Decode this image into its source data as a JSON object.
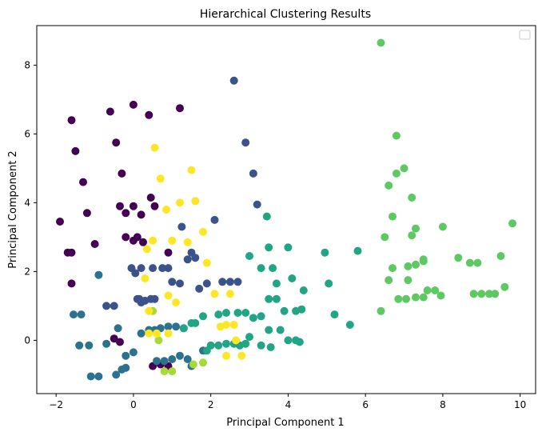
{
  "chart_data": {
    "type": "scatter",
    "title": "Hierarchical Clustering Results",
    "xlabel": "Principal Component 1",
    "ylabel": "Principal Component 2",
    "xlim": [
      -2.5,
      10.4
    ],
    "ylim": [
      -1.55,
      9.15
    ],
    "xticks": [
      -2,
      0,
      2,
      4,
      6,
      8,
      10
    ],
    "yticks": [
      0,
      2,
      4,
      6,
      8
    ],
    "grid": false,
    "legend": "top-right (empty)",
    "colors": {
      "purple": "#440154",
      "darkblue": "#3b528b",
      "teal": "#2c728e",
      "green": "#21a585",
      "lightgreen": "#5ec962",
      "lime": "#a5db36",
      "yellow": "#fde725"
    },
    "series": [
      {
        "color": "purple",
        "points": [
          [
            -1.6,
            6.4
          ],
          [
            -1.5,
            5.5
          ],
          [
            -1.3,
            4.6
          ],
          [
            -1.2,
            3.7
          ],
          [
            -1.9,
            3.45
          ],
          [
            -1.7,
            2.55
          ],
          [
            -1.6,
            2.55
          ],
          [
            -1.6,
            1.65
          ],
          [
            -1.0,
            2.8
          ],
          [
            -0.6,
            6.65
          ],
          [
            -0.45,
            5.75
          ],
          [
            -0.3,
            4.85
          ],
          [
            0.0,
            6.85
          ],
          [
            0.4,
            6.55
          ],
          [
            1.2,
            6.75
          ],
          [
            -0.35,
            3.9
          ],
          [
            -0.2,
            3.7
          ],
          [
            0.0,
            3.9
          ],
          [
            0.2,
            3.65
          ],
          [
            0.45,
            4.15
          ],
          [
            0.55,
            3.9
          ],
          [
            -0.2,
            3.0
          ],
          [
            0.0,
            2.9
          ],
          [
            0.1,
            3.0
          ],
          [
            0.25,
            2.85
          ],
          [
            0.9,
            2.55
          ],
          [
            -0.5,
            0.05
          ],
          [
            -0.35,
            -0.05
          ],
          [
            0.5,
            -0.75
          ],
          [
            0.7,
            -0.7
          ],
          [
            0.9,
            -0.75
          ]
        ]
      },
      {
        "color": "darkblue",
        "points": [
          [
            2.6,
            7.55
          ],
          [
            2.9,
            5.75
          ],
          [
            3.1,
            4.85
          ],
          [
            3.2,
            3.95
          ],
          [
            2.1,
            3.5
          ],
          [
            1.25,
            3.3
          ],
          [
            1.5,
            2.55
          ],
          [
            1.6,
            2.4
          ],
          [
            1.4,
            2.35
          ],
          [
            -0.05,
            2.1
          ],
          [
            0.2,
            2.1
          ],
          [
            0.5,
            2.1
          ],
          [
            0.75,
            2.1
          ],
          [
            0.9,
            2.1
          ],
          [
            0.05,
            1.95
          ],
          [
            0.1,
            1.2
          ],
          [
            0.15,
            1.2
          ],
          [
            0.3,
            1.15
          ],
          [
            0.45,
            1.2
          ],
          [
            0.55,
            1.2
          ],
          [
            0.2,
            1.1
          ],
          [
            -0.7,
            1.0
          ],
          [
            -0.5,
            1.0
          ],
          [
            1.0,
            1.7
          ],
          [
            1.2,
            1.65
          ],
          [
            1.7,
            1.5
          ],
          [
            1.9,
            1.65
          ],
          [
            2.3,
            1.7
          ],
          [
            2.5,
            1.7
          ],
          [
            2.7,
            1.7
          ]
        ]
      },
      {
        "color": "teal",
        "points": [
          [
            -1.55,
            0.75
          ],
          [
            -1.35,
            0.75
          ],
          [
            -1.4,
            -0.15
          ],
          [
            -1.15,
            -0.15
          ],
          [
            -1.1,
            -1.05
          ],
          [
            -0.9,
            -1.05
          ],
          [
            -0.7,
            -0.1
          ],
          [
            -0.45,
            -1.0
          ],
          [
            -0.3,
            -0.85
          ],
          [
            -0.2,
            -0.45
          ],
          [
            0.0,
            -0.35
          ],
          [
            -0.4,
            0.35
          ],
          [
            -0.2,
            -0.8
          ],
          [
            -0.9,
            1.9
          ],
          [
            0.6,
            -0.6
          ],
          [
            0.8,
            -0.6
          ],
          [
            1.0,
            -0.55
          ],
          [
            1.2,
            -0.45
          ],
          [
            1.4,
            -0.55
          ],
          [
            1.5,
            -0.75
          ],
          [
            0.2,
            0.2
          ],
          [
            0.4,
            0.3
          ],
          [
            0.55,
            0.3
          ],
          [
            0.7,
            0.35
          ],
          [
            0.9,
            0.4
          ],
          [
            1.1,
            0.4
          ],
          [
            1.3,
            0.35
          ],
          [
            1.8,
            -0.3
          ]
        ]
      },
      {
        "color": "green",
        "points": [
          [
            3.45,
            3.6
          ],
          [
            3.5,
            2.7
          ],
          [
            4.0,
            2.7
          ],
          [
            3.3,
            2.1
          ],
          [
            3.6,
            2.1
          ],
          [
            3.0,
            2.45
          ],
          [
            3.7,
            1.65
          ],
          [
            4.1,
            1.8
          ],
          [
            4.4,
            1.45
          ],
          [
            4.95,
            2.55
          ],
          [
            5.05,
            1.65
          ],
          [
            5.6,
            0.45
          ],
          [
            5.8,
            2.6
          ],
          [
            5.2,
            0.75
          ],
          [
            3.5,
            1.2
          ],
          [
            3.7,
            1.2
          ],
          [
            3.9,
            0.85
          ],
          [
            4.2,
            0.85
          ],
          [
            4.35,
            0.9
          ],
          [
            3.1,
            0.65
          ],
          [
            3.3,
            0.7
          ],
          [
            2.9,
            0.8
          ],
          [
            2.7,
            0.8
          ],
          [
            2.4,
            0.8
          ],
          [
            2.2,
            0.75
          ],
          [
            1.8,
            0.7
          ],
          [
            1.6,
            0.5
          ],
          [
            1.5,
            0.5
          ],
          [
            1.3,
            0.35
          ],
          [
            3.5,
            0.3
          ],
          [
            3.8,
            0.3
          ],
          [
            4.0,
            0.0
          ],
          [
            4.2,
            0.0
          ],
          [
            4.3,
            -0.05
          ],
          [
            3.0,
            0.1
          ],
          [
            3.3,
            -0.15
          ],
          [
            3.55,
            -0.2
          ],
          [
            2.4,
            -0.1
          ],
          [
            2.0,
            -0.15
          ],
          [
            2.2,
            -0.15
          ],
          [
            2.6,
            -0.1
          ],
          [
            2.75,
            -0.15
          ],
          [
            2.9,
            -0.1
          ],
          [
            1.9,
            -0.3
          ]
        ]
      },
      {
        "color": "lightgreen",
        "points": [
          [
            6.4,
            8.65
          ],
          [
            6.8,
            5.95
          ],
          [
            6.8,
            4.85
          ],
          [
            7.0,
            5.0
          ],
          [
            6.6,
            4.5
          ],
          [
            7.2,
            4.15
          ],
          [
            6.7,
            3.6
          ],
          [
            6.5,
            3.0
          ],
          [
            7.2,
            3.05
          ],
          [
            7.3,
            3.25
          ],
          [
            8.0,
            3.3
          ],
          [
            9.8,
            3.4
          ],
          [
            7.5,
            2.35
          ],
          [
            8.4,
            2.4
          ],
          [
            8.7,
            2.25
          ],
          [
            8.9,
            2.25
          ],
          [
            9.5,
            2.45
          ],
          [
            6.7,
            2.1
          ],
          [
            7.1,
            2.15
          ],
          [
            7.3,
            2.2
          ],
          [
            7.5,
            2.3
          ],
          [
            6.6,
            1.75
          ],
          [
            7.1,
            1.75
          ],
          [
            7.6,
            1.45
          ],
          [
            7.8,
            1.45
          ],
          [
            7.95,
            1.3
          ],
          [
            6.85,
            1.2
          ],
          [
            7.05,
            1.2
          ],
          [
            7.3,
            1.25
          ],
          [
            7.5,
            1.25
          ],
          [
            8.8,
            1.35
          ],
          [
            9.0,
            1.35
          ],
          [
            9.2,
            1.35
          ],
          [
            9.35,
            1.35
          ],
          [
            9.6,
            1.55
          ],
          [
            6.4,
            0.85
          ]
        ]
      },
      {
        "color": "lime",
        "points": [
          [
            0.5,
            0.85
          ],
          [
            0.65,
            0.0
          ],
          [
            0.8,
            -0.9
          ],
          [
            1.0,
            -0.9
          ],
          [
            1.55,
            -0.7
          ],
          [
            1.8,
            -0.65
          ]
        ]
      },
      {
        "color": "yellow",
        "points": [
          [
            0.55,
            5.6
          ],
          [
            0.7,
            4.7
          ],
          [
            1.5,
            4.95
          ],
          [
            1.2,
            4.0
          ],
          [
            1.6,
            4.05
          ],
          [
            0.85,
            3.8
          ],
          [
            1.8,
            3.15
          ],
          [
            0.5,
            2.9
          ],
          [
            1.0,
            2.9
          ],
          [
            1.4,
            2.85
          ],
          [
            1.9,
            2.25
          ],
          [
            0.35,
            2.65
          ],
          [
            0.3,
            1.8
          ],
          [
            0.9,
            1.3
          ],
          [
            1.1,
            1.1
          ],
          [
            2.1,
            1.35
          ],
          [
            2.5,
            1.35
          ],
          [
            2.4,
            0.45
          ],
          [
            2.6,
            0.45
          ],
          [
            2.25,
            0.4
          ],
          [
            2.65,
            0.0
          ],
          [
            2.4,
            -0.45
          ],
          [
            2.8,
            -0.45
          ],
          [
            0.6,
            0.2
          ],
          [
            0.9,
            0.2
          ],
          [
            0.4,
            0.85
          ],
          [
            0.4,
            0.2
          ]
        ]
      }
    ]
  }
}
